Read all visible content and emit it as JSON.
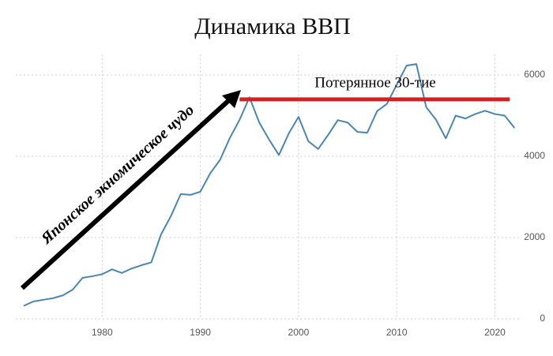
{
  "chart_data": {
    "type": "line",
    "title": "Динамика ВВП",
    "x": [
      1972,
      1973,
      1974,
      1975,
      1976,
      1977,
      1978,
      1979,
      1980,
      1981,
      1982,
      1983,
      1984,
      1985,
      1986,
      1987,
      1988,
      1989,
      1990,
      1991,
      1992,
      1993,
      1994,
      1995,
      1996,
      1997,
      1998,
      1999,
      2000,
      2001,
      2002,
      2003,
      2004,
      2005,
      2006,
      2007,
      2008,
      2009,
      2010,
      2011,
      2012,
      2013,
      2014,
      2015,
      2016,
      2017,
      2018,
      2019,
      2020,
      2021,
      2022
    ],
    "values": [
      320,
      430,
      470,
      510,
      580,
      720,
      1010,
      1050,
      1100,
      1220,
      1130,
      1240,
      1320,
      1390,
      2080,
      2530,
      3070,
      3050,
      3130,
      3580,
      3910,
      4450,
      4900,
      5450,
      4830,
      4410,
      4030,
      4560,
      4970,
      4370,
      4180,
      4520,
      4890,
      4830,
      4600,
      4580,
      5110,
      5290,
      5760,
      6230,
      6270,
      5210,
      4900,
      4440,
      5000,
      4930,
      5040,
      5120,
      5040,
      5000,
      4700
    ],
    "color": "#4a86b0",
    "xlim": [
      1971.2,
      2022.7
    ],
    "xticks": [
      1980,
      1990,
      2000,
      2010,
      2020
    ],
    "ylim": [
      0,
      6500
    ],
    "yticks": [
      0,
      2000,
      4000,
      6000
    ],
    "grid": true,
    "annotations": [
      {
        "text": "Японское экномическое чудо"
      },
      {
        "text": "Потерянное 30-тие",
        "value": 5400,
        "x": [
          1994,
          2021.5
        ],
        "color": "#d62020"
      }
    ]
  }
}
